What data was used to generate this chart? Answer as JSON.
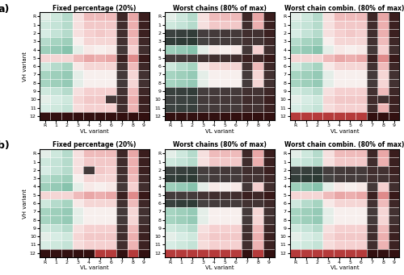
{
  "titles": [
    [
      "Fixed percentage (20%)",
      "Worst chains (80% of max)",
      "Worst chain combin. (80% of max)"
    ],
    [
      "Fixed percentage (20%)",
      "Worst chains (80% of max)",
      "Worst chain combin. (80% of max)"
    ]
  ],
  "panel_labels": [
    "a)",
    "b)"
  ],
  "vl_labels": [
    "R",
    "1",
    "2",
    "3",
    "4",
    "5",
    "6",
    "7",
    "8",
    "9"
  ],
  "vh_labels": [
    "R",
    "1",
    "2",
    "3",
    "4",
    "5",
    "6",
    "7",
    "8",
    "9",
    "10",
    "11",
    "12"
  ],
  "xlabel": "VL variant",
  "ylabel": "VH variant",
  "elisa": [
    [
      0.55,
      0.6,
      0.65,
      0.45,
      0.35,
      0.35,
      0.35,
      0.25,
      0.3,
      0.2
    ],
    [
      0.6,
      0.62,
      0.65,
      0.45,
      0.38,
      0.38,
      0.38,
      0.28,
      0.32,
      0.22
    ],
    [
      0.58,
      0.62,
      0.65,
      0.45,
      0.4,
      0.38,
      0.4,
      0.3,
      0.32,
      0.22
    ],
    [
      0.65,
      0.68,
      0.7,
      0.5,
      0.42,
      0.42,
      0.42,
      0.32,
      0.35,
      0.25
    ],
    [
      0.7,
      0.72,
      0.75,
      0.55,
      0.48,
      0.5,
      0.48,
      0.38,
      0.4,
      0.3
    ],
    [
      0.42,
      0.42,
      0.42,
      0.35,
      0.3,
      0.32,
      0.3,
      0.22,
      0.25,
      0.18
    ],
    [
      0.6,
      0.65,
      0.68,
      0.48,
      0.42,
      0.42,
      0.42,
      0.32,
      0.35,
      0.25
    ],
    [
      0.68,
      0.7,
      0.72,
      0.55,
      0.5,
      0.5,
      0.5,
      0.4,
      0.42,
      0.32
    ],
    [
      0.68,
      0.7,
      0.72,
      0.55,
      0.5,
      0.5,
      0.5,
      0.4,
      0.42,
      0.32
    ],
    [
      0.6,
      0.62,
      0.65,
      0.45,
      0.4,
      0.4,
      0.4,
      0.32,
      0.35,
      0.25
    ],
    [
      0.55,
      0.58,
      0.6,
      0.42,
      0.38,
      0.38,
      0.38,
      0.28,
      0.32,
      0.22
    ],
    [
      0.58,
      0.6,
      0.62,
      0.44,
      0.4,
      0.4,
      0.4,
      0.3,
      0.33,
      0.23
    ],
    [
      0.12,
      0.12,
      0.12,
      0.12,
      0.12,
      0.12,
      0.12,
      0.12,
      0.12,
      0.12
    ]
  ],
  "rejection_a1": [
    [
      0,
      0,
      0,
      0,
      0,
      0,
      0,
      1,
      0,
      1
    ],
    [
      0,
      0,
      0,
      0,
      0,
      0,
      0,
      1,
      0,
      1
    ],
    [
      0,
      0,
      0,
      0,
      0,
      0,
      0,
      1,
      0,
      1
    ],
    [
      0,
      0,
      0,
      0,
      0,
      0,
      0,
      1,
      0,
      1
    ],
    [
      0,
      0,
      0,
      0,
      0,
      0,
      0,
      1,
      0,
      1
    ],
    [
      0,
      0,
      0,
      0,
      0,
      0,
      0,
      1,
      0,
      1
    ],
    [
      0,
      0,
      0,
      0,
      0,
      0,
      0,
      1,
      0,
      1
    ],
    [
      0,
      0,
      0,
      0,
      0,
      0,
      0,
      1,
      0,
      1
    ],
    [
      0,
      0,
      0,
      0,
      0,
      0,
      0,
      1,
      0,
      1
    ],
    [
      0,
      0,
      0,
      0,
      0,
      0,
      0,
      1,
      0,
      1
    ],
    [
      0,
      0,
      0,
      0,
      0,
      0,
      1,
      1,
      0,
      1
    ],
    [
      0,
      0,
      0,
      0,
      0,
      0,
      0,
      1,
      0,
      1
    ],
    [
      1,
      1,
      1,
      1,
      1,
      1,
      1,
      1,
      1,
      1
    ]
  ],
  "rejection_a2": [
    [
      0,
      0,
      0,
      0,
      0,
      0,
      0,
      1,
      0,
      1
    ],
    [
      0,
      0,
      0,
      0,
      0,
      0,
      0,
      1,
      0,
      1
    ],
    [
      1,
      1,
      1,
      1,
      1,
      1,
      1,
      1,
      1,
      1
    ],
    [
      1,
      1,
      1,
      1,
      1,
      1,
      1,
      1,
      1,
      1
    ],
    [
      0,
      0,
      0,
      0,
      0,
      0,
      0,
      1,
      0,
      1
    ],
    [
      1,
      1,
      1,
      1,
      1,
      1,
      1,
      1,
      1,
      1
    ],
    [
      0,
      0,
      0,
      0,
      0,
      0,
      0,
      1,
      0,
      1
    ],
    [
      0,
      0,
      0,
      0,
      0,
      0,
      0,
      1,
      0,
      1
    ],
    [
      0,
      0,
      0,
      0,
      0,
      0,
      0,
      1,
      0,
      1
    ],
    [
      1,
      1,
      1,
      1,
      1,
      1,
      1,
      1,
      1,
      1
    ],
    [
      1,
      1,
      1,
      1,
      1,
      1,
      1,
      1,
      1,
      1
    ],
    [
      1,
      1,
      1,
      1,
      1,
      1,
      1,
      1,
      1,
      1
    ],
    [
      1,
      1,
      1,
      1,
      1,
      1,
      1,
      1,
      1,
      1
    ]
  ],
  "rejection_a3": [
    [
      0,
      0,
      0,
      0,
      0,
      0,
      0,
      1,
      0,
      1
    ],
    [
      0,
      0,
      0,
      0,
      0,
      0,
      0,
      1,
      0,
      1
    ],
    [
      0,
      0,
      0,
      0,
      0,
      0,
      0,
      1,
      0,
      1
    ],
    [
      0,
      0,
      0,
      0,
      0,
      0,
      0,
      1,
      0,
      1
    ],
    [
      0,
      0,
      0,
      0,
      0,
      0,
      0,
      1,
      0,
      1
    ],
    [
      0,
      0,
      0,
      0,
      0,
      0,
      0,
      1,
      0,
      1
    ],
    [
      0,
      0,
      0,
      0,
      0,
      0,
      0,
      1,
      0,
      1
    ],
    [
      0,
      0,
      0,
      0,
      0,
      0,
      0,
      1,
      0,
      1
    ],
    [
      0,
      0,
      0,
      0,
      0,
      0,
      0,
      1,
      0,
      1
    ],
    [
      0,
      0,
      0,
      0,
      0,
      0,
      0,
      1,
      0,
      1
    ],
    [
      0,
      0,
      0,
      0,
      0,
      0,
      0,
      1,
      1,
      1
    ],
    [
      0,
      0,
      0,
      0,
      0,
      0,
      0,
      1,
      0,
      1
    ],
    [
      0,
      0,
      0,
      0,
      0,
      0,
      0,
      1,
      1,
      1
    ]
  ],
  "rejection_b1": [
    [
      0,
      0,
      0,
      0,
      0,
      0,
      0,
      1,
      0,
      1
    ],
    [
      0,
      0,
      0,
      0,
      0,
      0,
      0,
      1,
      0,
      1
    ],
    [
      0,
      0,
      0,
      0,
      1,
      0,
      0,
      1,
      0,
      1
    ],
    [
      0,
      0,
      0,
      0,
      0,
      0,
      0,
      1,
      0,
      1
    ],
    [
      0,
      0,
      0,
      0,
      0,
      0,
      0,
      1,
      0,
      1
    ],
    [
      0,
      0,
      0,
      0,
      0,
      0,
      0,
      1,
      0,
      1
    ],
    [
      0,
      0,
      0,
      0,
      0,
      0,
      0,
      1,
      0,
      1
    ],
    [
      0,
      0,
      0,
      0,
      0,
      0,
      0,
      1,
      0,
      1
    ],
    [
      0,
      0,
      0,
      0,
      0,
      0,
      0,
      1,
      0,
      1
    ],
    [
      0,
      0,
      0,
      0,
      0,
      0,
      0,
      1,
      0,
      1
    ],
    [
      0,
      0,
      0,
      0,
      0,
      0,
      0,
      1,
      0,
      1
    ],
    [
      0,
      0,
      0,
      0,
      0,
      0,
      0,
      1,
      0,
      1
    ],
    [
      1,
      1,
      1,
      1,
      1,
      0,
      0,
      1,
      0,
      1
    ]
  ],
  "rejection_b2": [
    [
      0,
      0,
      0,
      0,
      0,
      0,
      0,
      1,
      0,
      1
    ],
    [
      0,
      0,
      0,
      0,
      0,
      0,
      0,
      1,
      0,
      1
    ],
    [
      1,
      1,
      1,
      1,
      1,
      1,
      1,
      1,
      1,
      1
    ],
    [
      1,
      1,
      1,
      1,
      1,
      1,
      1,
      1,
      1,
      1
    ],
    [
      0,
      0,
      0,
      0,
      0,
      0,
      0,
      1,
      0,
      1
    ],
    [
      1,
      1,
      1,
      1,
      1,
      1,
      1,
      1,
      1,
      1
    ],
    [
      1,
      1,
      1,
      1,
      1,
      1,
      1,
      1,
      1,
      1
    ],
    [
      0,
      0,
      0,
      0,
      0,
      0,
      0,
      1,
      0,
      1
    ],
    [
      0,
      0,
      0,
      0,
      0,
      0,
      0,
      1,
      0,
      1
    ],
    [
      0,
      0,
      0,
      0,
      0,
      0,
      0,
      1,
      0,
      1
    ],
    [
      0,
      0,
      0,
      0,
      0,
      0,
      0,
      1,
      0,
      1
    ],
    [
      0,
      0,
      0,
      0,
      0,
      0,
      0,
      1,
      0,
      1
    ],
    [
      0,
      0,
      0,
      0,
      0,
      0,
      0,
      1,
      0,
      1
    ]
  ],
  "rejection_b3": [
    [
      0,
      0,
      0,
      0,
      0,
      0,
      0,
      1,
      0,
      1
    ],
    [
      0,
      0,
      0,
      0,
      0,
      0,
      0,
      1,
      0,
      1
    ],
    [
      1,
      1,
      1,
      1,
      1,
      1,
      1,
      1,
      1,
      1
    ],
    [
      1,
      1,
      1,
      1,
      1,
      1,
      1,
      1,
      1,
      1
    ],
    [
      0,
      0,
      0,
      0,
      0,
      0,
      0,
      1,
      0,
      1
    ],
    [
      0,
      0,
      0,
      0,
      0,
      0,
      0,
      1,
      0,
      1
    ],
    [
      0,
      0,
      0,
      0,
      0,
      0,
      0,
      1,
      0,
      1
    ],
    [
      0,
      0,
      0,
      0,
      0,
      0,
      0,
      1,
      0,
      1
    ],
    [
      0,
      0,
      0,
      0,
      0,
      0,
      0,
      1,
      0,
      1
    ],
    [
      0,
      0,
      0,
      0,
      0,
      0,
      0,
      1,
      0,
      1
    ],
    [
      0,
      0,
      0,
      0,
      0,
      0,
      0,
      1,
      0,
      1
    ],
    [
      0,
      0,
      0,
      0,
      0,
      0,
      0,
      1,
      0,
      1
    ],
    [
      0,
      0,
      0,
      0,
      0,
      0,
      0,
      1,
      1,
      1
    ]
  ],
  "figsize": [
    5.0,
    3.41
  ],
  "dpi": 100
}
